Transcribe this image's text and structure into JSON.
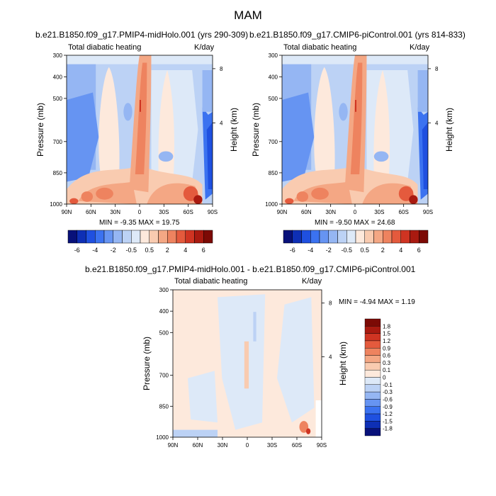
{
  "page": {
    "title": "MAM"
  },
  "panels": [
    {
      "id": "top-left",
      "subtitle": "b.e21.B1850.f09_g17.PMIP4-midHolo.001 (yrs 290-309)",
      "left_label": "Total diabatic heating",
      "right_label": "K/day",
      "ylabel": "Pressure (mb)",
      "y2label": "Height (km)",
      "stats": "MIN = -9.35  MAX = 19.75"
    },
    {
      "id": "top-right",
      "subtitle": "b.e21.B1850.f09_g17.CMIP6-piControl.001 (yrs 814-833)",
      "left_label": "Total diabatic heating",
      "right_label": "K/day",
      "ylabel": "Pressure (mb)",
      "y2label": "Height (km)",
      "stats": "MIN = -9.50  MAX = 24.68"
    },
    {
      "id": "bottom",
      "subtitle": "b.e21.B1850.f09_g17.PMIP4-midHolo.001 - b.e21.B1850.f09_g17.CMIP6-piControl.001",
      "left_label": "Total diabatic heating",
      "right_label": "K/day",
      "ylabel": "Pressure (mb)",
      "y2label": "Height (km)",
      "stats": "MIN = -4.94  MAX =  1.19"
    }
  ],
  "chart_data": [
    {
      "type": "heatmap",
      "title": "b.e21.B1850.f09_g17.PMIP4-midHolo.001 (yrs 290-309)",
      "xlabel": "",
      "ylabel": "Pressure (mb)",
      "y2label": "Height (km)",
      "x_ticks": [
        "90N",
        "60N",
        "30N",
        "0",
        "30S",
        "60S",
        "90S"
      ],
      "y_ticks": [
        "300",
        "400",
        "500",
        "700",
        "850",
        "1000"
      ],
      "y2_ticks": [
        "8",
        "4"
      ],
      "min": -9.35,
      "max": 19.75
    },
    {
      "type": "heatmap",
      "title": "b.e21.B1850.f09_g17.CMIP6-piControl.001 (yrs 814-833)",
      "xlabel": "",
      "ylabel": "Pressure (mb)",
      "y2label": "Height (km)",
      "x_ticks": [
        "90N",
        "60N",
        "30N",
        "0",
        "30S",
        "60S",
        "90S"
      ],
      "y_ticks": [
        "300",
        "400",
        "500",
        "700",
        "850",
        "1000"
      ],
      "y2_ticks": [
        "8",
        "4"
      ],
      "min": -9.5,
      "max": 24.68
    },
    {
      "type": "heatmap",
      "title": "b.e21.B1850.f09_g17.PMIP4-midHolo.001 - b.e21.B1850.f09_g17.CMIP6-piControl.001",
      "xlabel": "",
      "ylabel": "Pressure (mb)",
      "y2label": "Height (km)",
      "x_ticks": [
        "90N",
        "60N",
        "30N",
        "0",
        "30S",
        "60S",
        "90S"
      ],
      "y_ticks": [
        "300",
        "400",
        "500",
        "700",
        "850",
        "1000"
      ],
      "y2_ticks": [
        "8",
        "4"
      ],
      "min": -4.94,
      "max": 1.19
    }
  ],
  "colorbar_top": {
    "labels": [
      "-6",
      "-4",
      "-2",
      "-0.5",
      "0.5",
      "2",
      "4",
      "6"
    ],
    "colors": [
      "#08117a",
      "#0e2fb5",
      "#1f50e0",
      "#3b72f0",
      "#6694f2",
      "#95b6f3",
      "#bcd2f5",
      "#dde9f8",
      "#fde9dc",
      "#f9cbb0",
      "#f4a784",
      "#ee835f",
      "#e45a3d",
      "#cf3422",
      "#a91a10",
      "#7c0a05"
    ]
  },
  "colorbar_bottom": {
    "labels": [
      "1.8",
      "1.5",
      "1.2",
      "0.9",
      "0.6",
      "0.3",
      "0.1",
      "0",
      "-0.1",
      "-0.3",
      "-0.6",
      "-0.9",
      "-1.2",
      "-1.5",
      "-1.8"
    ],
    "colors": [
      "#7c0a05",
      "#a91a10",
      "#cf3422",
      "#e45a3d",
      "#ee835f",
      "#f4a784",
      "#f9cbb0",
      "#fde9dc",
      "#dde9f8",
      "#bcd2f5",
      "#95b6f3",
      "#6694f2",
      "#3b72f0",
      "#1f50e0",
      "#0e2fb5",
      "#08117a"
    ]
  }
}
